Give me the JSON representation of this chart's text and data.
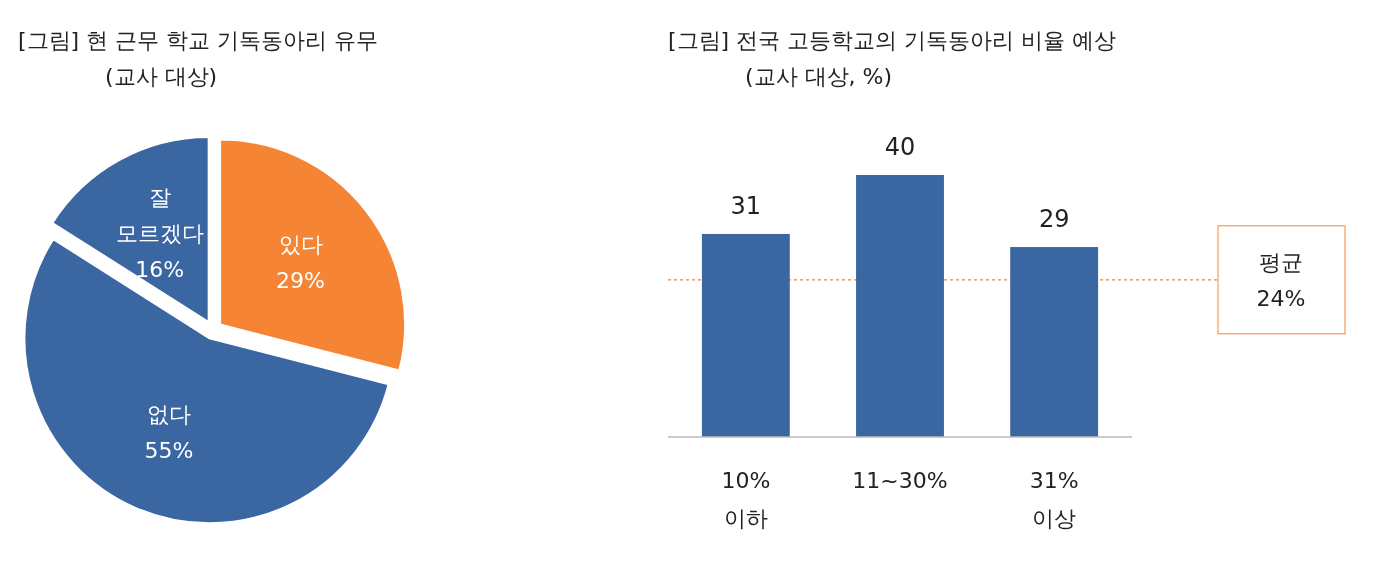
{
  "chart_data": [
    {
      "type": "pie",
      "title": "[그림] 현 근무 학교 기독동아리 유무",
      "subtitle": "(교사 대상)",
      "categories": [
        "있다",
        "없다",
        "잘 모르겠다"
      ],
      "values": [
        29,
        55,
        16
      ],
      "colors": [
        "#f58535",
        "#3a66a1",
        "#3a66a1"
      ],
      "value_labels": [
        "29%",
        "55%",
        "16%"
      ]
    },
    {
      "type": "bar",
      "title": "[그림] 전국 고등학교의 기독동아리 비율 예상",
      "subtitle": "(교사 대상, %)",
      "categories": [
        "10% 이하",
        "11~30%",
        "31% 이상"
      ],
      "values": [
        31,
        40,
        29
      ],
      "color": "#3a66a1",
      "data_labels": true,
      "ref_lines": [
        {
          "axis": "y",
          "value": 24,
          "label": "평균 24%",
          "color": "#f58535",
          "line_style": "dotted"
        }
      ]
    }
  ]
}
